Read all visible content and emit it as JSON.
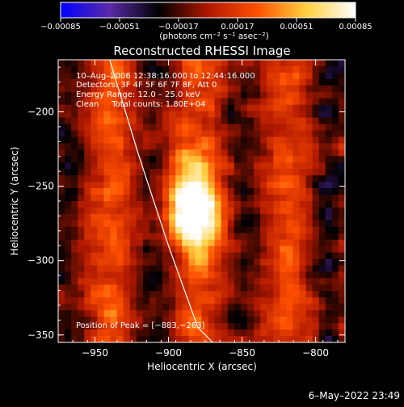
{
  "chart_data": {
    "type": "heatmap",
    "title": "Reconstructed RHESSI Image",
    "xlabel": "Heliocentric X (arcsec)",
    "ylabel": "Heliocentric Y (arcsec)",
    "xlim": [
      -975,
      -780
    ],
    "ylim": [
      -355,
      -165
    ],
    "xticks": [
      -950,
      -900,
      -850,
      -800
    ],
    "xtick_labels": [
      "−950",
      "−900",
      "−850",
      "−800"
    ],
    "yticks": [
      -200,
      -250,
      -300,
      -350
    ],
    "ytick_labels": [
      "−200",
      "−250",
      "−300",
      "−350"
    ],
    "colorbar": {
      "min": -0.00085,
      "max": 0.00085,
      "ticks": [
        -0.00085,
        -0.00051,
        -0.00017,
        0.00017,
        0.00051,
        0.00085
      ],
      "tick_labels": [
        "−0.00085",
        "−0.00051",
        "−0.00017",
        "0.00017",
        "0.00051",
        "0.00085"
      ],
      "unit_label": "(photons cm⁻² s⁻¹ asec⁻²)",
      "colormap": [
        "#0000ff",
        "#5a2aa8",
        "#000000",
        "#b01800",
        "#ff5000",
        "#ffd040",
        "#ffffff"
      ]
    },
    "annotations": [
      "10–Aug–2006 12:38:16.000 to 12:44:16.000",
      "Detectors: 3F 4F 5F 6F 7F 8F, Att 0",
      "Energy Range: 12.0 – 25.0 keV",
      "Clean     Total counts: 1.80E+04"
    ],
    "peak_label": "Position of Peak = [−883,−263]",
    "peak": {
      "x": -883,
      "y": -263
    },
    "limb_curve": {
      "x": [
        -940,
        -920,
        -900,
        -880,
        -870
      ],
      "y": [
        -165,
        -230,
        -290,
        -345,
        -355
      ]
    },
    "date_stamp": "6–May–2022 23:49"
  }
}
